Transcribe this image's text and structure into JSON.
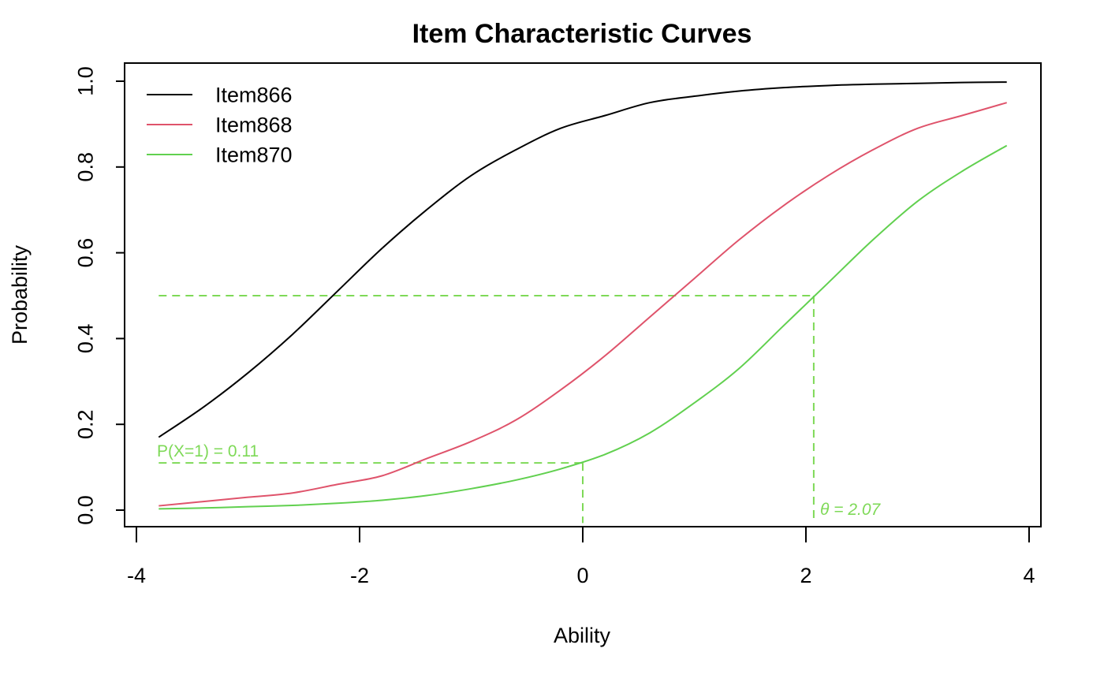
{
  "chart_data": {
    "type": "line",
    "title": "Item Characteristic Curves",
    "xlabel": "Ability",
    "ylabel": "Probability",
    "xlim": [
      -4,
      4
    ],
    "ylim": [
      0,
      1
    ],
    "x_ticks": [
      -4,
      -2,
      0,
      2,
      4
    ],
    "x_tick_labels": [
      "-4",
      "-2",
      "0",
      "2",
      "4"
    ],
    "y_ticks": [
      0,
      0.2,
      0.4,
      0.6,
      0.8,
      1
    ],
    "y_tick_labels": [
      "0.0",
      "0.2",
      "0.4",
      "0.6",
      "0.8",
      "1.0"
    ],
    "grid": false,
    "legend_position": "top-left",
    "x": [
      -3.8,
      -3.4,
      -3.0,
      -2.6,
      -2.2,
      -1.8,
      -1.4,
      -1.0,
      -0.6,
      -0.2,
      0.2,
      0.6,
      1.0,
      1.4,
      1.8,
      2.2,
      2.6,
      3.0,
      3.4,
      3.8
    ],
    "series": [
      {
        "name": "Item866",
        "color": "#000000",
        "values": [
          0.17,
          0.24,
          0.32,
          0.41,
          0.51,
          0.61,
          0.7,
          0.78,
          0.84,
          0.89,
          0.92,
          0.95,
          0.965,
          0.977,
          0.985,
          0.99,
          0.993,
          0.995,
          0.997,
          0.998
        ]
      },
      {
        "name": "Item868",
        "color": "#DF536B",
        "values": [
          0.01,
          0.02,
          0.03,
          0.04,
          0.06,
          0.08,
          0.12,
          0.16,
          0.21,
          0.28,
          0.36,
          0.45,
          0.54,
          0.63,
          0.71,
          0.78,
          0.84,
          0.89,
          0.92,
          0.95
        ]
      },
      {
        "name": "Item870",
        "color": "#61D04F",
        "values": [
          0.003,
          0.005,
          0.008,
          0.011,
          0.016,
          0.023,
          0.034,
          0.05,
          0.07,
          0.096,
          0.13,
          0.18,
          0.25,
          0.33,
          0.43,
          0.53,
          0.63,
          0.72,
          0.79,
          0.85
        ]
      }
    ],
    "annotations": {
      "color": "#7ED957",
      "probability_label": "P(X=1) = 0.11",
      "probability_at_theta": {
        "theta": 0,
        "p": 0.11
      },
      "theta_label": "θ = 2.07",
      "theta_at_half": {
        "theta": 2.07,
        "p": 0.5
      }
    }
  }
}
